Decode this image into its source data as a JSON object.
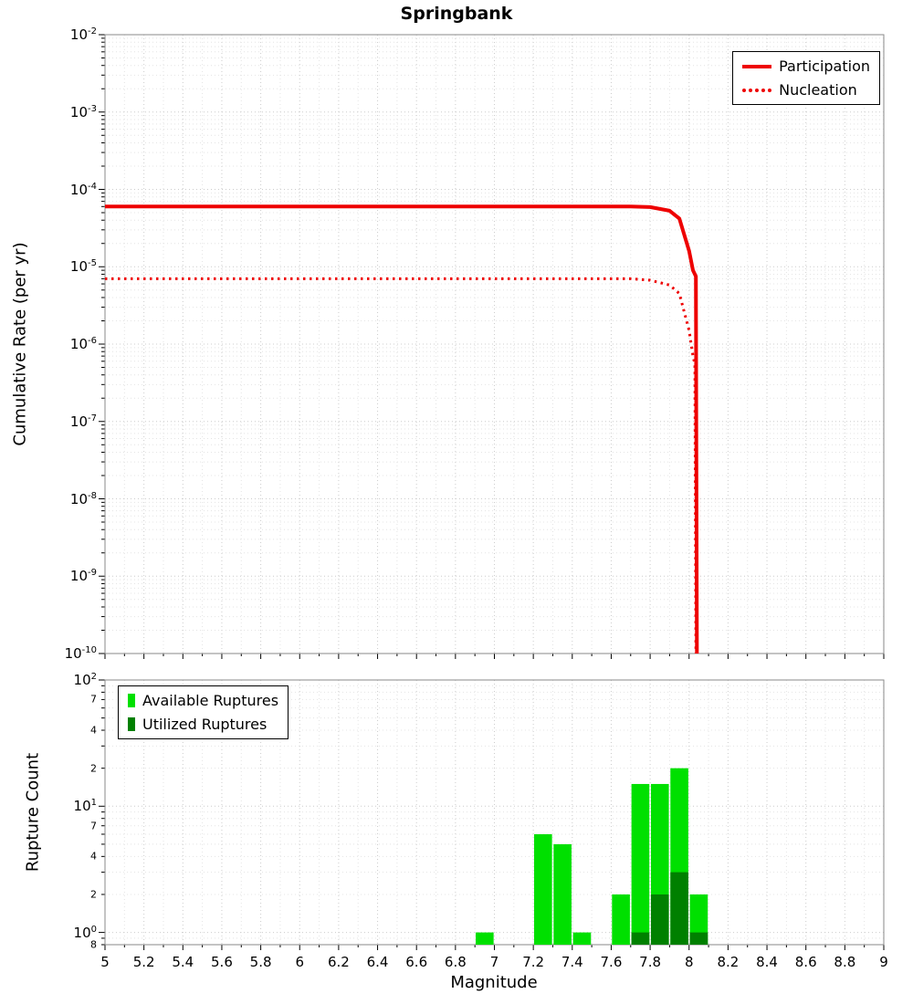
{
  "title": "Springbank",
  "xlabel": "Magnitude",
  "xticks": [
    "5",
    "5.2",
    "5.4",
    "5.6",
    "5.8",
    "6",
    "6.2",
    "6.4",
    "6.6",
    "6.8",
    "7",
    "7.2",
    "7.4",
    "7.6",
    "7.8",
    "8",
    "8.2",
    "8.4",
    "8.6",
    "8.8",
    "9"
  ],
  "colors": {
    "line": "#ee0000",
    "available": "#00e000",
    "utilized": "#008000",
    "grid_major": "#cccccc",
    "grid_minor": "#e4e4e4",
    "frame": "#8a8a8a"
  },
  "top_panel": {
    "ylabel": "Cumulative Rate (per yr)",
    "ytick_exponents": [
      -2,
      -3,
      -4,
      -5,
      -6,
      -7,
      -8,
      -9,
      -10
    ],
    "legend": [
      {
        "label": "Participation",
        "style": "solid"
      },
      {
        "label": "Nucleation",
        "style": "dotted"
      }
    ]
  },
  "bottom_panel": {
    "ylabel": "Rupture Count",
    "ytick_exponents": [
      2,
      1,
      0
    ],
    "ytick_minor_labels": [
      [
        70,
        "7"
      ],
      [
        40,
        "4"
      ],
      [
        20,
        "2"
      ],
      [
        7,
        "7"
      ],
      [
        4,
        "4"
      ],
      [
        2,
        "2"
      ],
      [
        0.8,
        "8"
      ]
    ],
    "legend": [
      {
        "label": "Available Ruptures"
      },
      {
        "label": "Utilized Ruptures"
      }
    ]
  },
  "chart_data": [
    {
      "type": "line",
      "title": "Springbank",
      "xlabel": "Magnitude",
      "ylabel": "Cumulative Rate (per yr)",
      "xlim": [
        5,
        9
      ],
      "ylim": [
        1e-10,
        0.01
      ],
      "yscale": "log",
      "grid": true,
      "legend_position": "top-right",
      "series": [
        {
          "name": "Participation",
          "style": "solid",
          "color": "#ee0000",
          "points": [
            [
              5,
              6e-05
            ],
            [
              7.7,
              6e-05
            ],
            [
              7.8,
              5.9e-05
            ],
            [
              7.9,
              5.3e-05
            ],
            [
              7.95,
              4.2e-05
            ],
            [
              8.0,
              1.6e-05
            ],
            [
              8.02,
              9e-06
            ],
            [
              8.035,
              7.5e-06
            ],
            [
              8.04,
              1e-10
            ]
          ]
        },
        {
          "name": "Nucleation",
          "style": "dotted",
          "color": "#ee0000",
          "points": [
            [
              5,
              7e-06
            ],
            [
              7.7,
              7e-06
            ],
            [
              7.8,
              6.7e-06
            ],
            [
              7.9,
              5.8e-06
            ],
            [
              7.95,
              4.5e-06
            ],
            [
              8.0,
              1.5e-06
            ],
            [
              8.02,
              7e-07
            ],
            [
              8.03,
              5.5e-07
            ],
            [
              8.035,
              1e-10
            ]
          ]
        }
      ]
    },
    {
      "type": "bar",
      "xlabel": "Magnitude",
      "ylabel": "Rupture Count",
      "xlim": [
        5,
        9
      ],
      "ylim": [
        0.8,
        100
      ],
      "yscale": "log",
      "bin_width": 0.1,
      "grid": true,
      "legend_position": "top-left",
      "series": [
        {
          "name": "Available Ruptures",
          "color": "#00e000",
          "bins": [
            [
              6.95,
              1
            ],
            [
              7.25,
              6
            ],
            [
              7.35,
              5
            ],
            [
              7.45,
              1
            ],
            [
              7.65,
              2
            ],
            [
              7.75,
              15
            ],
            [
              7.85,
              15
            ],
            [
              7.95,
              20
            ],
            [
              8.05,
              2
            ]
          ]
        },
        {
          "name": "Utilized Ruptures",
          "color": "#008000",
          "bins": [
            [
              7.75,
              1
            ],
            [
              7.85,
              2
            ],
            [
              7.95,
              3
            ],
            [
              8.05,
              1
            ]
          ]
        }
      ]
    }
  ]
}
